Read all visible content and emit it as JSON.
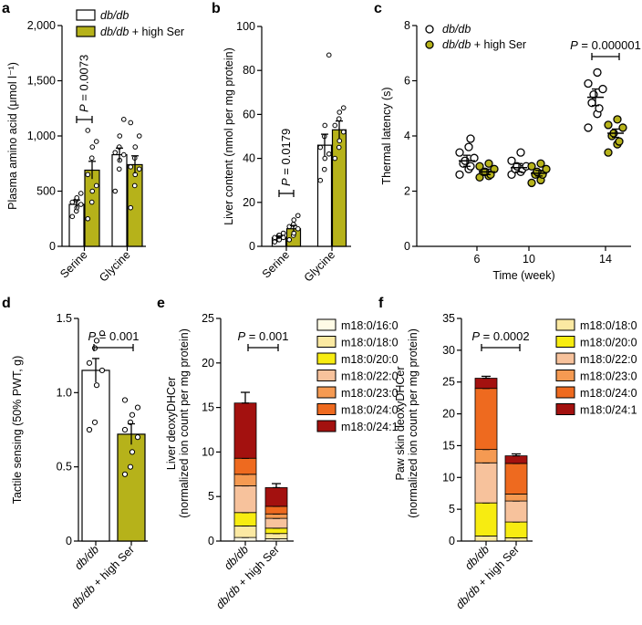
{
  "figure": {
    "layout": "two rows of three panels"
  },
  "colors": {
    "control_fill": "#ffffff",
    "treated_fill": "#b6b21a",
    "treated_dot": "#b6b21a",
    "stroke": "#000000",
    "species": {
      "m18:0/16:0": "#fffbe6",
      "m18:0/18:0": "#fbe9a2",
      "m18:0/20:0": "#f7ec11",
      "m18:0/22:0": "#f7c29c",
      "m18:0/23:0": "#f59a52",
      "m18:0/24:0": "#ee6a1f",
      "m18:0/24:1": "#a3110f"
    }
  },
  "chart_data": [
    {
      "id": "a",
      "type": "bar",
      "letter": "a",
      "title": "",
      "xlabel": "",
      "ylabel": "Plasma amino acid (μmol l⁻¹)",
      "ylim": [
        0,
        2000
      ],
      "yticks": [
        "0",
        "500",
        "1,000",
        "1,500",
        "2,000"
      ],
      "ytick_values": [
        0,
        500,
        1000,
        1500,
        2000
      ],
      "categories": [
        "Serine",
        "Glycine"
      ],
      "series": [
        {
          "name": "db/db",
          "values": [
            380,
            830
          ],
          "err": [
            40,
            60
          ],
          "points": [
            [
              270,
              320,
              350,
              380,
              400,
              420,
              440,
              480
            ],
            [
              500,
              700,
              780,
              830,
              850,
              900,
              1000,
              1150
            ]
          ]
        },
        {
          "name": "db/db + high Ser",
          "values": [
            690,
            740
          ],
          "err": [
            80,
            80
          ],
          "points": [
            [
              250,
              400,
              500,
              550,
              650,
              800,
              900,
              950,
              1050
            ],
            [
              350,
              550,
              650,
              700,
              720,
              800,
              900,
              1000,
              1120
            ]
          ]
        }
      ],
      "legend": [
        "db/db",
        "db/db + high Ser"
      ],
      "annotation": {
        "text": "P = 0.0073",
        "category": "Serine"
      }
    },
    {
      "id": "b",
      "type": "bar",
      "letter": "b",
      "title": "",
      "xlabel": "",
      "ylabel": "Liver content (nmol per mg protein)",
      "ylim": [
        0,
        100
      ],
      "yticks": [
        "0",
        "20",
        "40",
        "60",
        "80",
        "100"
      ],
      "ytick_values": [
        0,
        20,
        40,
        60,
        80,
        100
      ],
      "categories": [
        "Serine",
        "Glycine"
      ],
      "series": [
        {
          "name": "db/db",
          "values": [
            4,
            46
          ],
          "err": [
            0.7,
            5
          ],
          "points": [
            [
              2,
              3,
              3,
              4,
              4,
              5,
              5,
              6
            ],
            [
              30,
              35,
              40,
              42,
              45,
              50,
              55,
              87
            ]
          ]
        },
        {
          "name": "db/db + high Ser",
          "values": [
            8,
            53
          ],
          "err": [
            1.5,
            4
          ],
          "points": [
            [
              3,
              5,
              6,
              8,
              9,
              10,
              12,
              14
            ],
            [
              40,
              45,
              48,
              52,
              55,
              58,
              61,
              63
            ]
          ]
        }
      ],
      "annotation": {
        "text": "P = 0.0179",
        "category": "Serine"
      }
    },
    {
      "id": "c",
      "type": "scatter",
      "letter": "c",
      "title": "",
      "xlabel": "Time (week)",
      "ylabel": "Thermal latency (s)",
      "ylim": [
        0,
        8
      ],
      "yticks": [
        "0",
        "2",
        "4",
        "6",
        "8"
      ],
      "ytick_values": [
        0,
        2,
        4,
        6,
        8
      ],
      "x": [
        "6",
        "10",
        "14"
      ],
      "series": [
        {
          "name": "db/db",
          "means": [
            3.1,
            2.85,
            5.4
          ],
          "err": [
            0.2,
            0.15,
            0.3
          ],
          "points": [
            [
              2.6,
              2.8,
              2.9,
              3.0,
              3.1,
              3.2,
              3.4,
              3.6,
              3.9
            ],
            [
              2.6,
              2.7,
              2.8,
              2.8,
              2.9,
              2.9,
              3.1,
              3.4
            ],
            [
              4.3,
              4.8,
              5.0,
              5.2,
              5.5,
              5.7,
              5.9,
              6.3
            ]
          ]
        },
        {
          "name": "db/db + high Ser",
          "means": [
            2.7,
            2.65,
            4.1
          ],
          "err": [
            0.1,
            0.1,
            0.15
          ],
          "points": [
            [
              2.5,
              2.55,
              2.6,
              2.7,
              2.7,
              2.8,
              2.9,
              3.0
            ],
            [
              2.3,
              2.4,
              2.6,
              2.6,
              2.7,
              2.8,
              2.9,
              3.0
            ],
            [
              3.4,
              3.7,
              3.8,
              4.0,
              4.1,
              4.3,
              4.4,
              4.6
            ]
          ]
        }
      ],
      "legend": [
        "db/db",
        "db/db + high Ser"
      ],
      "annotation": {
        "text": "P = 0.000001",
        "x": "14"
      }
    },
    {
      "id": "d",
      "type": "bar",
      "letter": "d",
      "title": "",
      "xlabel": "",
      "ylabel": "Tactile sensing (50% PWT, g)",
      "ylim": [
        0,
        1.5
      ],
      "yticks": [
        "0",
        "0.5",
        "1.0",
        "1.5"
      ],
      "ytick_values": [
        0,
        0.5,
        1.0,
        1.5
      ],
      "categories": [
        "db/db",
        "db/db + high Ser"
      ],
      "values": [
        1.15,
        0.72
      ],
      "err": [
        0.08,
        0.07
      ],
      "points": [
        [
          0.75,
          0.8,
          1.05,
          1.15,
          1.2,
          1.3,
          1.35,
          1.4
        ],
        [
          0.45,
          0.5,
          0.6,
          0.7,
          0.75,
          0.8,
          0.85,
          0.9,
          0.95
        ]
      ],
      "annotation": {
        "text": "P = 0.001"
      }
    },
    {
      "id": "e",
      "type": "bar",
      "stacked": true,
      "letter": "e",
      "title": "",
      "xlabel": "",
      "ylabel": "Liver deoxyDHCer (normalized ion count per mg protein)",
      "ylabel_lines": [
        "Liver deoxyDHCer",
        "(normalized ion count per mg protein)"
      ],
      "ylim": [
        0,
        25
      ],
      "yticks": [
        "0",
        "5",
        "10",
        "15",
        "20",
        "25"
      ],
      "ytick_values": [
        0,
        5,
        10,
        15,
        20,
        25
      ],
      "categories": [
        "db/db",
        "db/db + high Ser"
      ],
      "series": [
        {
          "name": "m18:0/16:0",
          "values": [
            0.4,
            0.25
          ]
        },
        {
          "name": "m18:0/18:0",
          "values": [
            1.3,
            0.6
          ]
        },
        {
          "name": "m18:0/20:0",
          "values": [
            1.5,
            0.6
          ]
        },
        {
          "name": "m18:0/22:0",
          "values": [
            3.0,
            1.1
          ]
        },
        {
          "name": "m18:0/23:0",
          "values": [
            1.3,
            0.5
          ]
        },
        {
          "name": "m18:0/24:0",
          "values": [
            1.8,
            0.85
          ]
        },
        {
          "name": "m18:0/24:1",
          "values": [
            6.2,
            2.1
          ]
        }
      ],
      "total_err": [
        1.2,
        0.45
      ],
      "annotation": {
        "text": "P = 0.001"
      }
    },
    {
      "id": "f",
      "type": "bar",
      "stacked": true,
      "letter": "f",
      "title": "",
      "xlabel": "",
      "ylabel": "Paw skin deoxyDHCer (normalized ion count per mg protein)",
      "ylabel_lines": [
        "Paw skin deoxyDHCer",
        "(normalized ion count per mg protein)"
      ],
      "ylim": [
        0,
        35
      ],
      "yticks": [
        "0",
        "5",
        "10",
        "15",
        "20",
        "25",
        "30",
        "35"
      ],
      "ytick_values": [
        0,
        5,
        10,
        15,
        20,
        25,
        30,
        35
      ],
      "categories": [
        "db/db",
        "db/db + high Ser"
      ],
      "series": [
        {
          "name": "m18:0/18:0",
          "values": [
            0.8,
            0.5
          ]
        },
        {
          "name": "m18:0/20:0",
          "values": [
            5.2,
            2.5
          ]
        },
        {
          "name": "m18:0/22:0",
          "values": [
            6.3,
            3.3
          ]
        },
        {
          "name": "m18:0/23:0",
          "values": [
            2.1,
            1.1
          ]
        },
        {
          "name": "m18:0/24:0",
          "values": [
            9.6,
            4.8
          ]
        },
        {
          "name": "m18:0/24:1",
          "values": [
            1.6,
            1.2
          ]
        }
      ],
      "total_err": [
        0.3,
        0.3
      ],
      "annotation": {
        "text": "P = 0.0002"
      }
    }
  ]
}
